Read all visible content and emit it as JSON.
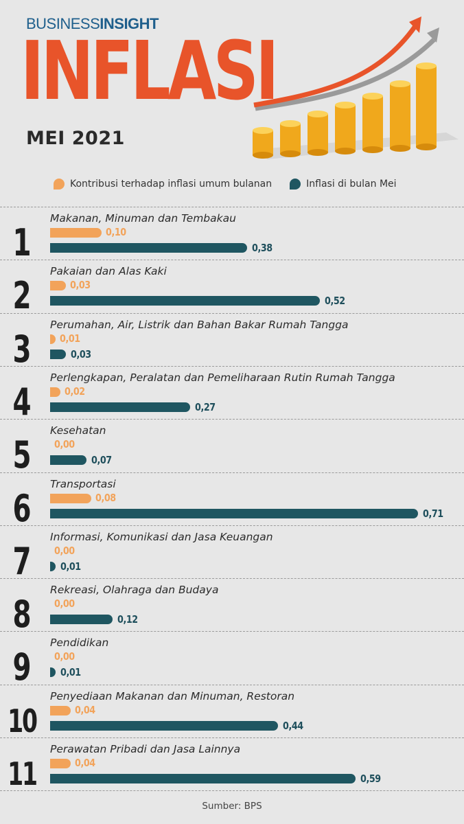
{
  "brand": {
    "part1": "BUSINESS",
    "part2": "INSIGHT"
  },
  "header": {
    "title": "INFLASI",
    "subtitle": "MEI 2021"
  },
  "colors": {
    "orange": "#f2a35a",
    "teal": "#1f5661",
    "title": "#e8542a"
  },
  "chart_data": {
    "type": "bar",
    "orientation": "horizontal",
    "legend": [
      {
        "name": "Kontribusi terhadap inflasi umum bulanan",
        "color": "#f2a35a"
      },
      {
        "name": "Inflasi di bulan Mei",
        "color": "#1f5661"
      }
    ],
    "categories": [
      {
        "rank": "1",
        "name": "Makanan, Minuman dan Tembakau",
        "contrib": 0.1,
        "inflation": 0.38,
        "contrib_label": "0,10",
        "inflation_label": "0,38"
      },
      {
        "rank": "2",
        "name": "Pakaian dan Alas Kaki",
        "contrib": 0.03,
        "inflation": 0.52,
        "contrib_label": "0,03",
        "inflation_label": "0,52"
      },
      {
        "rank": "3",
        "name": "Perumahan, Air, Listrik dan Bahan Bakar Rumah Tangga",
        "contrib": 0.01,
        "inflation": 0.03,
        "contrib_label": "0,01",
        "inflation_label": "0,03"
      },
      {
        "rank": "4",
        "name": "Perlengkapan, Peralatan dan Pemeliharaan Rutin Rumah Tangga",
        "contrib": 0.02,
        "inflation": 0.27,
        "contrib_label": "0,02",
        "inflation_label": "0,27"
      },
      {
        "rank": "5",
        "name": "Kesehatan",
        "contrib": 0.0,
        "inflation": 0.07,
        "contrib_label": "0,00",
        "inflation_label": "0,07"
      },
      {
        "rank": "6",
        "name": "Transportasi",
        "contrib": 0.08,
        "inflation": 0.71,
        "contrib_label": "0,08",
        "inflation_label": "0,71"
      },
      {
        "rank": "7",
        "name": "Informasi, Komunikasi dan Jasa Keuangan",
        "contrib": 0.0,
        "inflation": 0.01,
        "contrib_label": "0,00",
        "inflation_label": "0,01"
      },
      {
        "rank": "8",
        "name": "Rekreasi, Olahraga dan Budaya",
        "contrib": 0.0,
        "inflation": 0.12,
        "contrib_label": "0,00",
        "inflation_label": "0,12"
      },
      {
        "rank": "9",
        "name": "Pendidikan",
        "contrib": 0.0,
        "inflation": 0.01,
        "contrib_label": "0,00",
        "inflation_label": "0,01"
      },
      {
        "rank": "10",
        "name": "Penyediaan Makanan dan Minuman, Restoran",
        "contrib": 0.04,
        "inflation": 0.44,
        "contrib_label": "0,04",
        "inflation_label": "0,44"
      },
      {
        "rank": "11",
        "name": "Perawatan Pribadi dan Jasa Lainnya",
        "contrib": 0.04,
        "inflation": 0.59,
        "contrib_label": "0,04",
        "inflation_label": "0,59"
      }
    ],
    "xlim": [
      0,
      0.71
    ]
  },
  "source": "Sumber: BPS"
}
